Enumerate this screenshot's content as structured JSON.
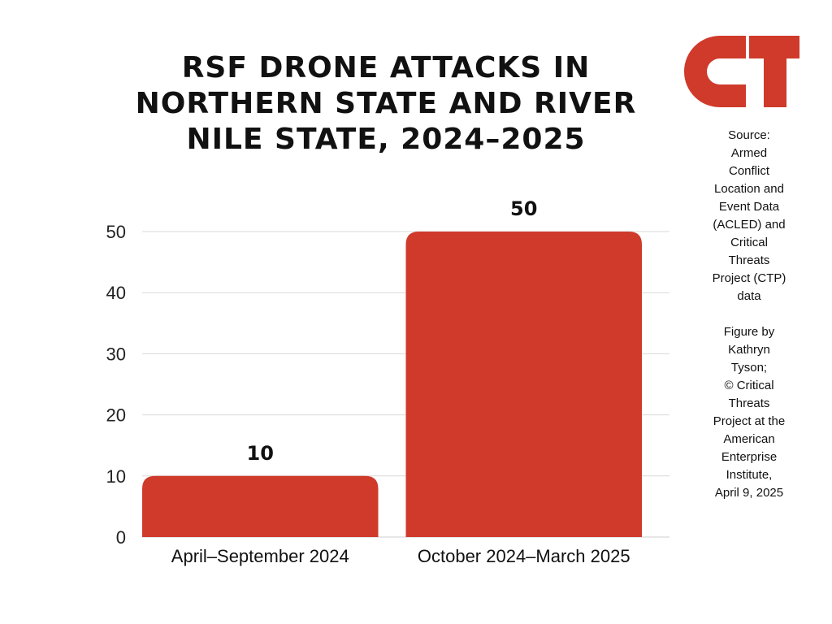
{
  "title_lines": [
    "RSF DRONE ATTACKS IN",
    "NORTHERN STATE AND RIVER",
    "NILE STATE, 2024–2025"
  ],
  "logo": {
    "text": "CT",
    "color": "#cf3a2b",
    "icon": "ct-logo-icon"
  },
  "source_lines": [
    "Source:",
    "Armed",
    "Conflict",
    "Location and",
    "Event Data",
    "(ACLED) and",
    "Critical",
    "Threats",
    "Project (CTP)",
    "data"
  ],
  "credit_lines": [
    "Figure by",
    "Kathryn",
    "Tyson;",
    "© Critical",
    "Threats",
    "Project at the",
    "American",
    "Enterprise",
    "Institute,",
    "April 9, 2025"
  ],
  "chart_data": {
    "type": "bar",
    "title": "RSF DRONE ATTACKS IN NORTHERN STATE AND RIVER NILE STATE, 2024–2025",
    "categories": [
      "April–September 2024",
      "October 2024–March 2025"
    ],
    "values": [
      10,
      50
    ],
    "data_labels": [
      "10",
      "50"
    ],
    "yticks": [
      0,
      10,
      20,
      30,
      40,
      50
    ],
    "ylim": [
      0,
      50
    ],
    "xlabel": "",
    "ylabel": "",
    "grid": true,
    "bar_color": "#cf3a2b",
    "grid_color": "#d9d9d9"
  }
}
